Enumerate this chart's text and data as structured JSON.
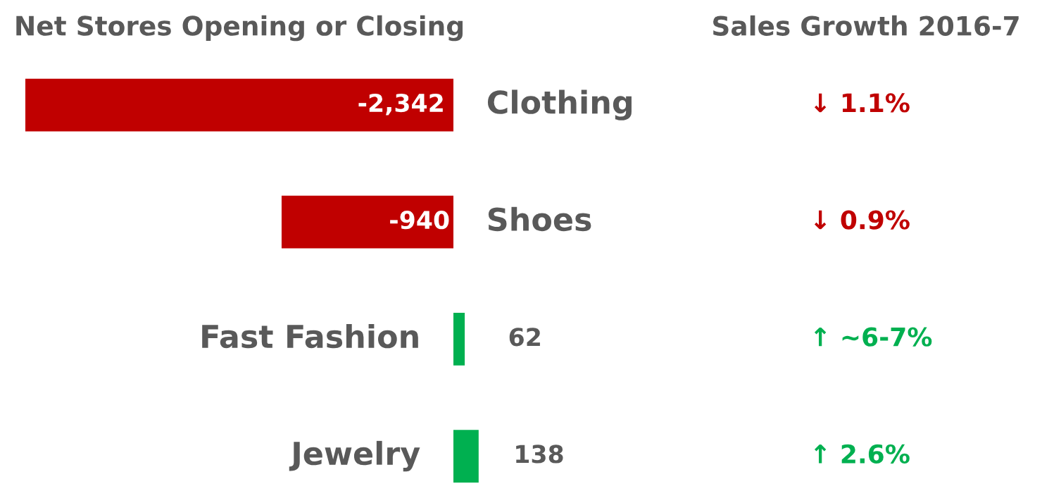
{
  "chart_data": {
    "type": "bar",
    "orientation": "horizontal",
    "title": "Net Stores Opening or Closing",
    "categories": [
      "Clothing",
      "Shoes",
      "Fast Fashion",
      "Jewelry"
    ],
    "values": [
      -2342,
      -940,
      62,
      138
    ],
    "colors": [
      "#c00000",
      "#c00000",
      "#00b050",
      "#00b050"
    ],
    "value_labels": [
      "-2,342",
      "-940",
      "62",
      "138"
    ],
    "annotations": [
      "Sales Growth 2016-7",
      "↓ 1.1%",
      "↓ 0.9%",
      "↑ ~6-7%",
      "↑ 2.6%"
    ],
    "tick_labels": false
  }
}
